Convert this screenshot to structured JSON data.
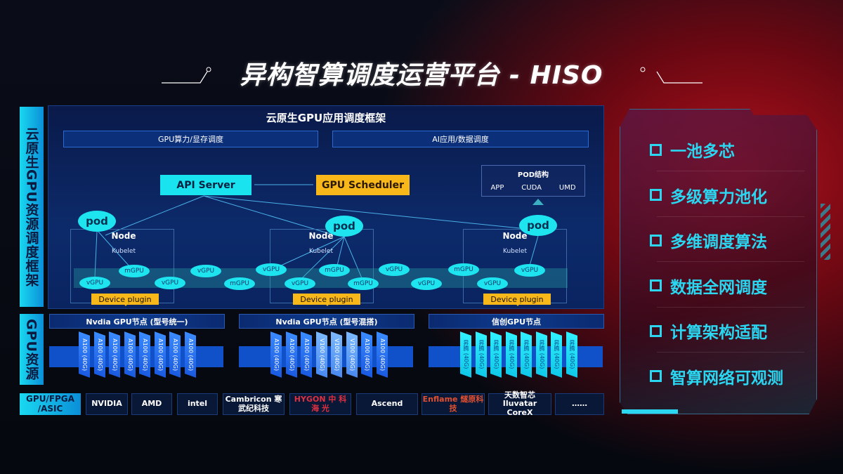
{
  "title": "异构智算调度运营平台 - HISO",
  "left_labels": {
    "framework": "云原生GPU资源调度框架",
    "resources": "GPU资源"
  },
  "framework": {
    "header": "云原生GPU应用调度框架",
    "box_left": "GPU算力/显存调度",
    "box_right": "AI应用/数据调度",
    "api_server": "API Server",
    "gpu_scheduler": "GPU Scheduler",
    "pod_structure": {
      "title": "POD结构",
      "items": [
        "APP",
        "CUDA",
        "UMD"
      ]
    },
    "pod_label": "pod",
    "node_label": "Node",
    "kubelet_label": "Kubelet",
    "device_plugin": "Device plugin",
    "vgpu": "vGPU",
    "mgpu": "mGPU"
  },
  "gpu_nodes": [
    {
      "title": "Nvdia GPU节点 (型号统一)",
      "chips": [
        "A100 (40G)",
        "A100 (40G)",
        "A100 (40G)",
        "A100 (40G)",
        "A100 (40G)",
        "A100 (40G)",
        "A100 (40G)",
        "A100 (40G)"
      ]
    },
    {
      "title": "Nvdia GPU节点 (型号混搭)",
      "chips": [
        "A100 (40G)",
        "A100 (40G)",
        "A100 (40G)",
        "V100 (40G)",
        "V100 (40G)",
        "V100 (40G)",
        "A100 (40G)",
        "A100 (40G)"
      ]
    },
    {
      "title": "信创GPU节点",
      "chips": [
        "昇腾 (40G)",
        "昇腾 (40G)",
        "昇腾 (40G)",
        "昇腾 (40G)",
        "昇腾 (40G)",
        "昇腾 (40G)",
        "昇腾 (40G)",
        "昇腾 (40G)"
      ]
    }
  ],
  "vendors": {
    "label": "GPU/FPGA /ASIC",
    "items": [
      "NVIDIA",
      "AMD",
      "intel",
      "Cambricon 寒武纪科技",
      "HYGON 中 科 海 光",
      "Ascend",
      "Enflame 燧原科技",
      "天数智芯 Iluvatar CoreX",
      "……"
    ]
  },
  "features": [
    "一池多芯",
    "多级算力池化",
    "多维调度算法",
    "数据全网调度",
    "计算架构适配",
    "智算网络可观测"
  ],
  "colors": {
    "cyan": "#1ee4f0",
    "yellow": "#f8b81a",
    "red_glow": "#b0101c",
    "panel_blue": "#0c2a6a"
  }
}
